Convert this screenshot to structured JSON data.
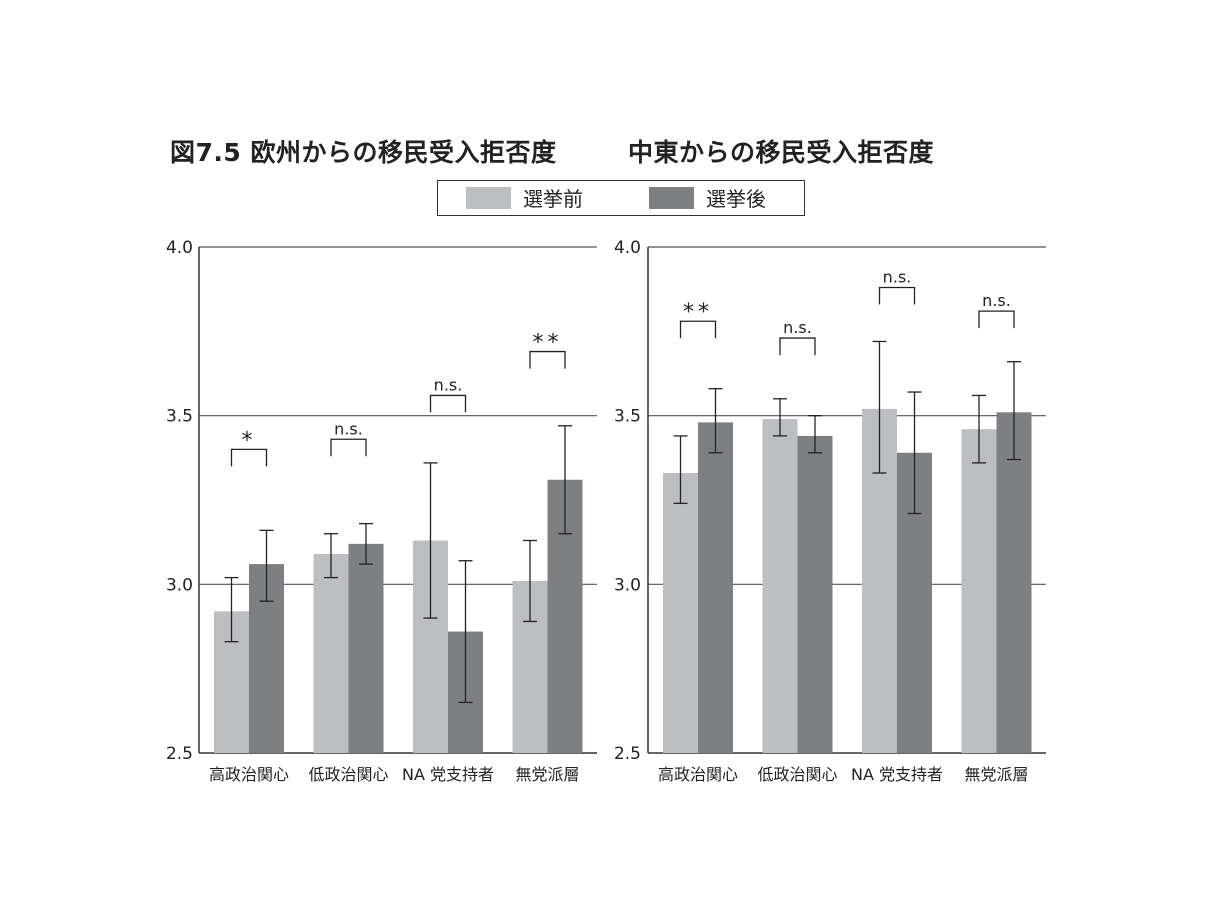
{
  "page": {
    "title_left": "図7.5 欧州からの移民受入拒否度",
    "title_right": "中東からの移民受入拒否度"
  },
  "legend": {
    "items": [
      {
        "label": "選挙前",
        "color": "#bdbec2"
      },
      {
        "label": "選挙後",
        "color": "#7e7f82"
      }
    ]
  },
  "chart_data": [
    {
      "type": "bar",
      "title": "欧州からの移民受入拒否度",
      "categories": [
        "高政治関心",
        "低政治関心",
        "NA 党支持者",
        "無党派層"
      ],
      "ylim": [
        2.5,
        4.0
      ],
      "yticks": [
        "2.5",
        "3.0",
        "3.5",
        "4.0"
      ],
      "series": [
        {
          "name": "選挙前",
          "values": [
            2.92,
            3.09,
            3.13,
            3.01
          ],
          "err_low": [
            2.83,
            3.02,
            2.9,
            2.89
          ],
          "err_high": [
            3.02,
            3.15,
            3.36,
            3.13
          ]
        },
        {
          "name": "選挙後",
          "values": [
            3.06,
            3.12,
            2.86,
            3.31
          ],
          "err_low": [
            2.95,
            3.06,
            2.65,
            3.15
          ],
          "err_high": [
            3.16,
            3.18,
            3.07,
            3.47
          ]
        }
      ],
      "significance": [
        "*",
        "n.s.",
        "n.s.",
        "**"
      ],
      "sig_bracket_y": [
        3.4,
        3.43,
        3.56,
        3.69
      ],
      "grid": true
    },
    {
      "type": "bar",
      "title": "中東からの移民受入拒否度",
      "categories": [
        "高政治関心",
        "低政治関心",
        "NA 党支持者",
        "無党派層"
      ],
      "ylim": [
        2.5,
        4.0
      ],
      "yticks": [
        "2.5",
        "3.0",
        "3.5",
        "4.0"
      ],
      "series": [
        {
          "name": "選挙前",
          "values": [
            3.33,
            3.49,
            3.52,
            3.46
          ],
          "err_low": [
            3.24,
            3.44,
            3.33,
            3.36
          ],
          "err_high": [
            3.44,
            3.55,
            3.72,
            3.56
          ]
        },
        {
          "name": "選挙後",
          "values": [
            3.48,
            3.44,
            3.39,
            3.51
          ],
          "err_low": [
            3.39,
            3.39,
            3.21,
            3.37
          ],
          "err_high": [
            3.58,
            3.5,
            3.57,
            3.66
          ]
        }
      ],
      "significance": [
        "**",
        "n.s.",
        "n.s.",
        "n.s."
      ],
      "sig_bracket_y": [
        3.78,
        3.73,
        3.88,
        3.81
      ],
      "grid": true
    }
  ]
}
